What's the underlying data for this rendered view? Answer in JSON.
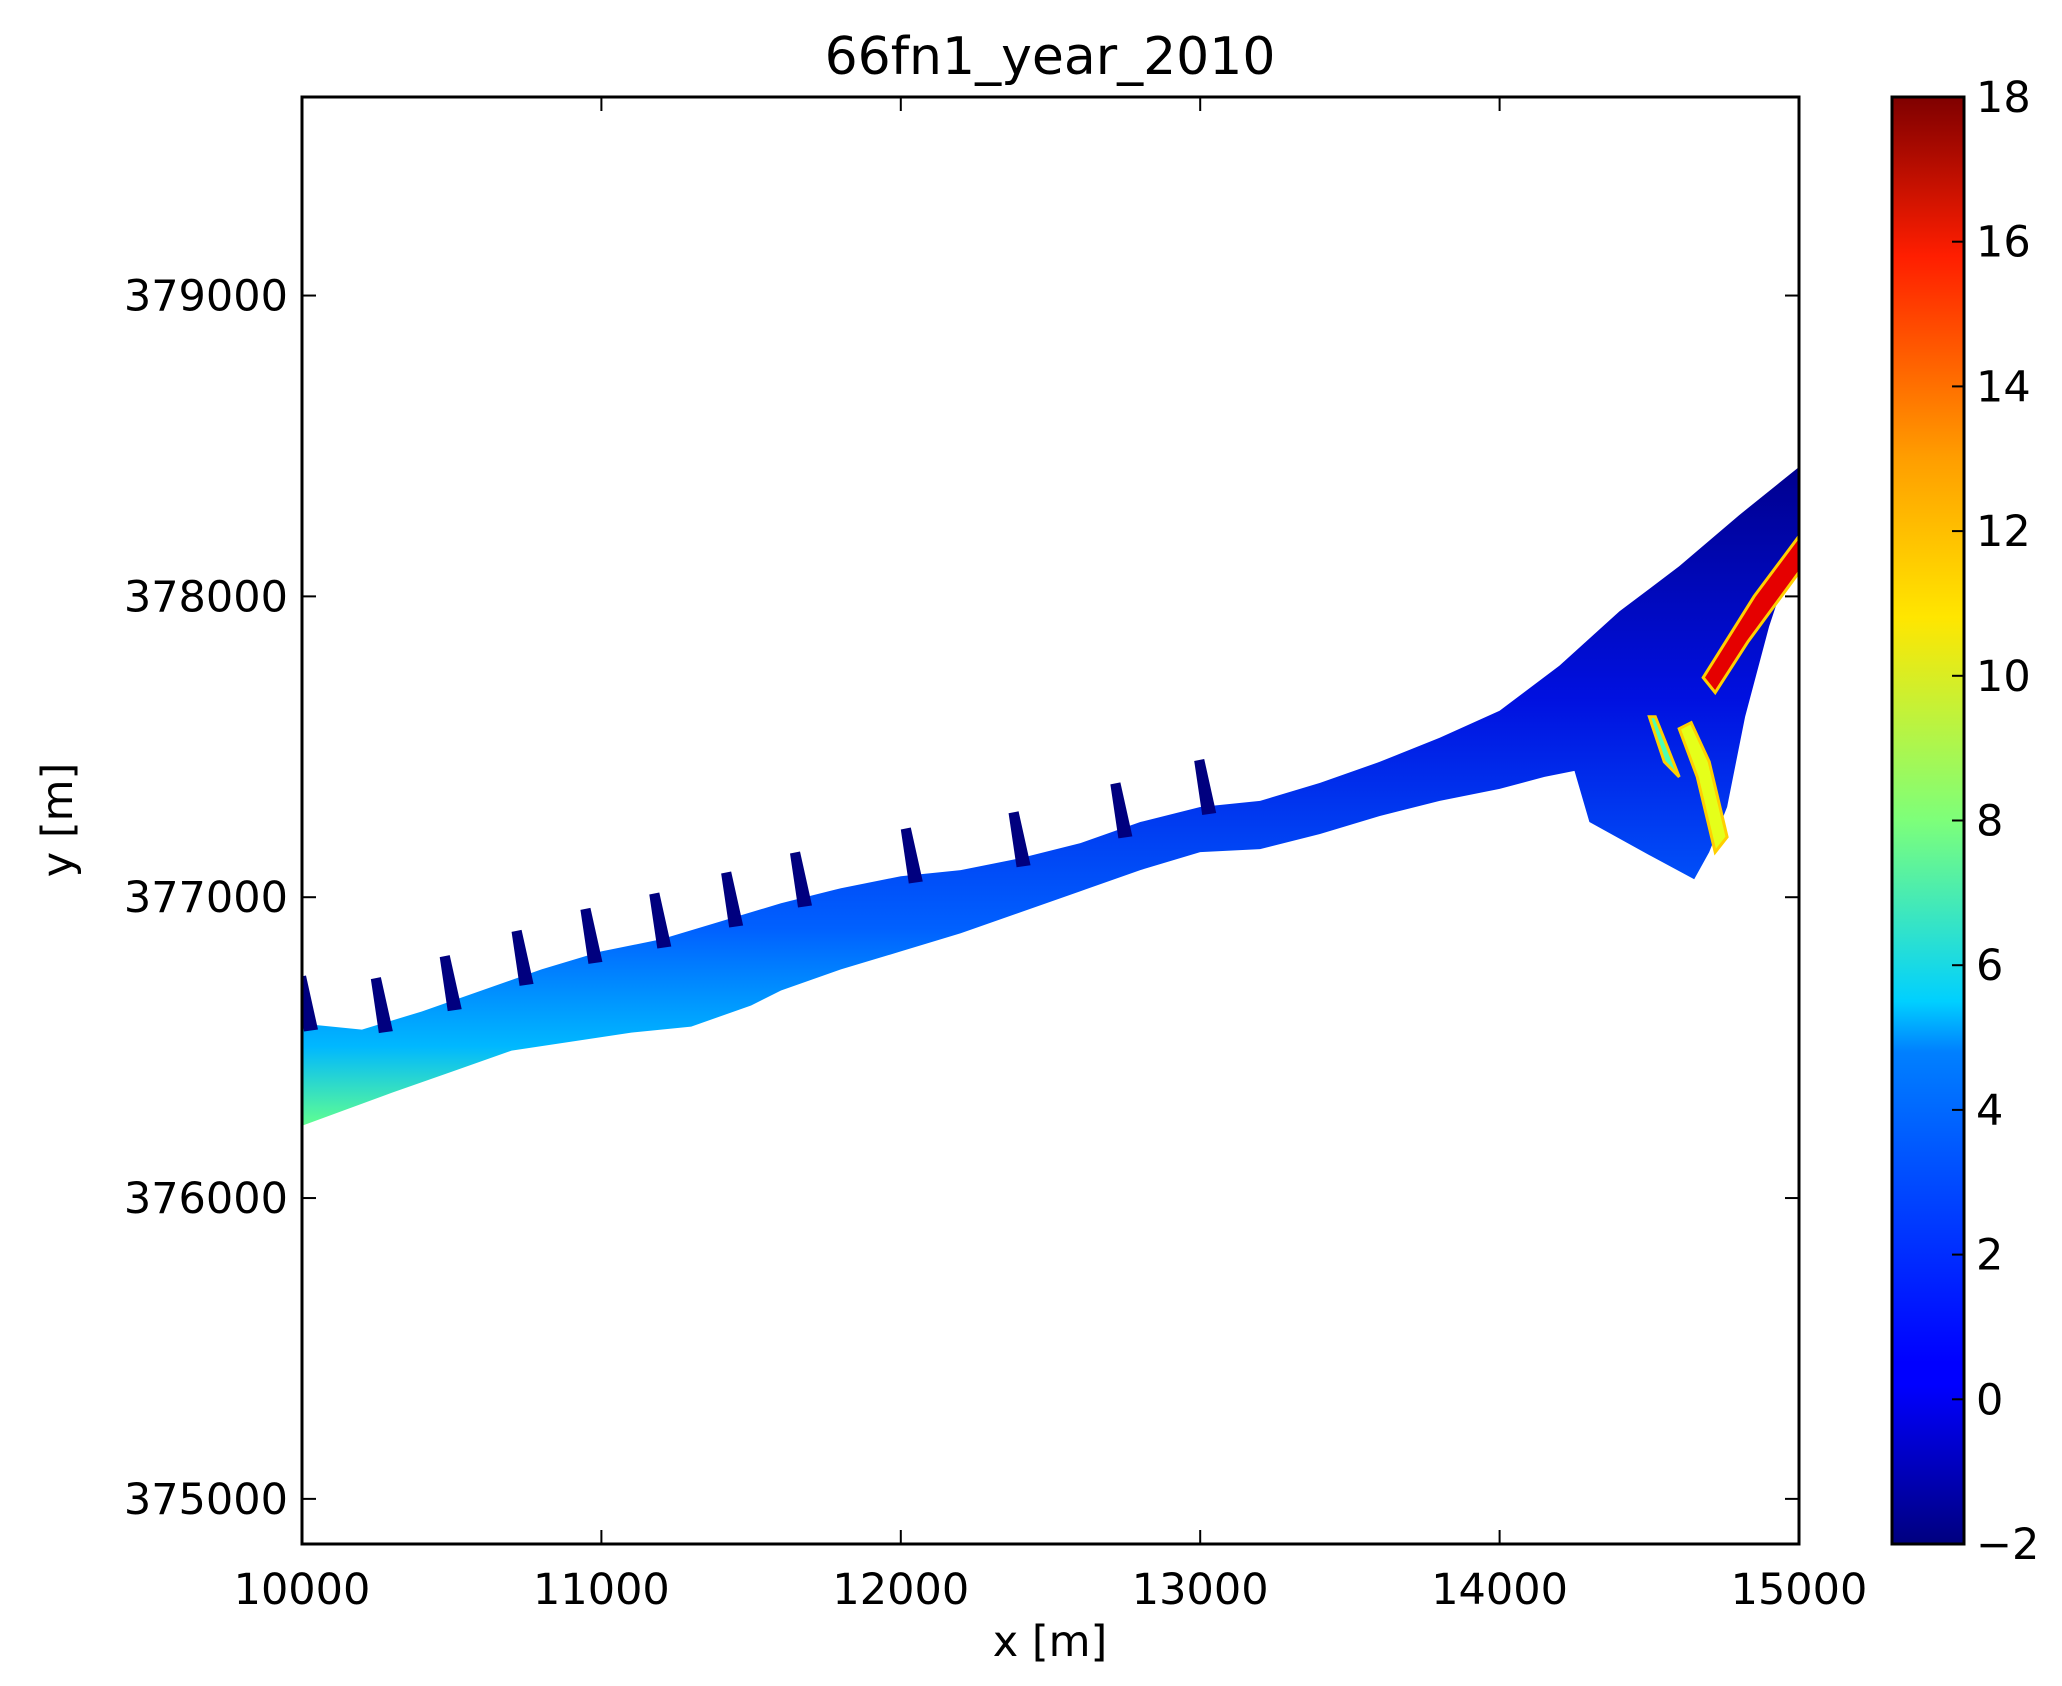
{
  "chart_data": {
    "type": "heatmap",
    "title": "66fn1_year_2010",
    "xlabel": "x [m]",
    "ylabel": "y [m]",
    "xlim": [
      10000,
      15000
    ],
    "ylim": [
      374850,
      379660
    ],
    "x_ticks": [
      10000,
      11000,
      12000,
      13000,
      14000,
      15000
    ],
    "x_tick_labels": [
      "10000",
      "11000",
      "12000",
      "13000",
      "14000",
      "15000"
    ],
    "y_ticks": [
      375000,
      376000,
      377000,
      378000,
      379000
    ],
    "y_tick_labels": [
      "375000",
      "376000",
      "377000",
      "378000",
      "379000"
    ],
    "grid": false,
    "colormap": "jet",
    "colorbar": {
      "range": [
        -2,
        18
      ],
      "ticks": [
        -2,
        0,
        2,
        4,
        6,
        8,
        10,
        12,
        14,
        16,
        18
      ],
      "tick_labels": [
        "−2",
        "0",
        "2",
        "4",
        "6",
        "8",
        "10",
        "12",
        "14",
        "16",
        "18"
      ],
      "placement": "right"
    },
    "coastline": {
      "upper_edge": [
        [
          10000,
          376580
        ],
        [
          10200,
          376560
        ],
        [
          10400,
          376620
        ],
        [
          10600,
          376690
        ],
        [
          10800,
          376760
        ],
        [
          11000,
          376820
        ],
        [
          11200,
          376860
        ],
        [
          11400,
          376920
        ],
        [
          11600,
          376980
        ],
        [
          11800,
          377030
        ],
        [
          12000,
          377070
        ],
        [
          12200,
          377090
        ],
        [
          12400,
          377130
        ],
        [
          12600,
          377180
        ],
        [
          12800,
          377250
        ],
        [
          13000,
          377300
        ],
        [
          13200,
          377320
        ],
        [
          13400,
          377380
        ],
        [
          13600,
          377450
        ],
        [
          13800,
          377530
        ],
        [
          14000,
          377620
        ],
        [
          14200,
          377770
        ],
        [
          14400,
          377950
        ],
        [
          14600,
          378100
        ],
        [
          14800,
          378270
        ],
        [
          15000,
          378430
        ]
      ],
      "lower_edge": [
        [
          15000,
          378200
        ],
        [
          14900,
          377900
        ],
        [
          14820,
          377600
        ],
        [
          14760,
          377300
        ],
        [
          14700,
          377150
        ],
        [
          14650,
          377060
        ],
        [
          14500,
          377140
        ],
        [
          14300,
          377250
        ],
        [
          14250,
          377420
        ],
        [
          14150,
          377400
        ],
        [
          14000,
          377360
        ],
        [
          13800,
          377320
        ],
        [
          13600,
          377270
        ],
        [
          13400,
          377210
        ],
        [
          13200,
          377160
        ],
        [
          13000,
          377150
        ],
        [
          12800,
          377090
        ],
        [
          12600,
          377020
        ],
        [
          12400,
          376950
        ],
        [
          12200,
          376880
        ],
        [
          12000,
          376820
        ],
        [
          11800,
          376760
        ],
        [
          11600,
          376690
        ],
        [
          11500,
          376640
        ],
        [
          11300,
          376570
        ],
        [
          11100,
          376550
        ],
        [
          10900,
          376520
        ],
        [
          10700,
          376490
        ],
        [
          10500,
          376420
        ],
        [
          10300,
          376350
        ],
        [
          10000,
          376240
        ]
      ]
    },
    "groynes_x": [
      10000,
      10250,
      10480,
      10720,
      10950,
      11180,
      11420,
      11650,
      12020,
      12380,
      12720,
      13000
    ],
    "high_value_features": [
      {
        "value": 16,
        "points": [
          [
            14680,
            377730
          ],
          [
            14850,
            378000
          ],
          [
            15000,
            378200
          ],
          [
            15000,
            378080
          ],
          [
            14830,
            377850
          ],
          [
            14720,
            377680
          ]
        ]
      },
      {
        "value": 10,
        "points": [
          [
            14640,
            377580
          ],
          [
            14700,
            377450
          ],
          [
            14760,
            377200
          ],
          [
            14720,
            377150
          ],
          [
            14660,
            377400
          ],
          [
            14600,
            377560
          ]
        ]
      },
      {
        "value": 7,
        "points": [
          [
            14500,
            377600
          ],
          [
            14550,
            377450
          ],
          [
            14600,
            377400
          ],
          [
            14560,
            377500
          ],
          [
            14520,
            377600
          ]
        ]
      }
    ]
  }
}
